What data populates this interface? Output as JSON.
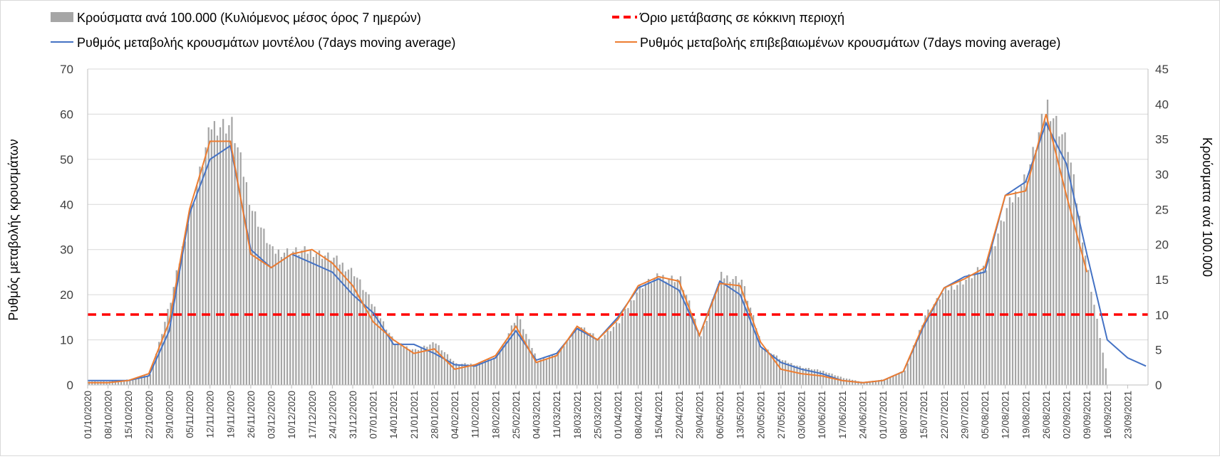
{
  "chart_data": {
    "type": "bar+line",
    "legend": {
      "bars": "Κρούσματα ανά 100.000 (Κυλιόμενος μέσος όρος 7 ημερών)",
      "threshold": "Όριο μετάβασης σε κόκκινη περιοχή",
      "model": "Ρυθμός μεταβολής κρουσμάτων μοντέλου (7days moving average)",
      "confirmed": "Ρυθμός μεταβολής επιβεβαιωμένων κρουσμάτων (7days moving average)"
    },
    "y_left": {
      "label": "Ρυθμός μεταβολής κρουσμάτων",
      "min": 0,
      "max": 70,
      "ticks": [
        "0",
        "10",
        "20",
        "30",
        "40",
        "50",
        "60",
        "70"
      ]
    },
    "y_right": {
      "label": "Κρούσματα ανά 100.000",
      "min": 0,
      "max": 45,
      "ticks": [
        "0",
        "5",
        "10",
        "15",
        "20",
        "25",
        "30",
        "35",
        "40",
        "45"
      ]
    },
    "x_dates": [
      "01/10/2020",
      "08/10/2020",
      "15/10/2020",
      "22/10/2020",
      "29/10/2020",
      "05/11/2020",
      "12/11/2020",
      "19/11/2020",
      "26/11/2020",
      "03/12/2020",
      "10/12/2020",
      "17/12/2020",
      "24/12/2020",
      "31/12/2020",
      "07/01/2021",
      "14/01/2021",
      "21/01/2021",
      "28/01/2021",
      "04/02/2021",
      "11/02/2021",
      "18/02/2021",
      "25/02/2021",
      "04/03/2021",
      "11/03/2021",
      "18/03/2021",
      "25/03/2021",
      "01/04/2021",
      "08/04/2021",
      "15/04/2021",
      "22/04/2021",
      "29/04/2021",
      "06/05/2021",
      "13/05/2021",
      "20/05/2021",
      "27/05/2021",
      "03/06/2021",
      "10/06/2021",
      "17/06/2021",
      "24/06/2021",
      "01/07/2021",
      "08/07/2021",
      "15/07/2021",
      "22/07/2021",
      "29/07/2021",
      "05/08/2021",
      "12/08/2021",
      "19/08/2021",
      "26/08/2021",
      "02/09/2021",
      "09/09/2021",
      "16/09/2021",
      "23/09/2021"
    ],
    "threshold_value_left": 15.6,
    "bars_per_100k_weekly": [
      0.5,
      0.5,
      0.8,
      1.5,
      12,
      25,
      37,
      37,
      25,
      19,
      19,
      19,
      18,
      16,
      11,
      6,
      5,
      6,
      3,
      3,
      4,
      10,
      3.5,
      4.5,
      8.5,
      6.5,
      9,
      14,
      15.5,
      15,
      7,
      15.5,
      15,
      5.5,
      3.5,
      2.5,
      2,
      1,
      0.4,
      0.8,
      2,
      10,
      13.5,
      15,
      17,
      25,
      30,
      40,
      34,
      16,
      0,
      0
    ],
    "model_weekly_left": [
      1,
      1,
      1,
      2,
      12,
      38,
      50,
      53,
      30,
      26,
      29,
      27,
      25,
      20,
      16,
      9,
      9,
      7,
      4.5,
      4.2,
      6,
      12,
      5.5,
      7,
      12.5,
      10,
      15,
      21.5,
      23.5,
      21,
      11,
      23,
      20,
      8.5,
      5,
      3.5,
      2.5,
      1,
      0.5,
      1,
      3,
      13,
      21.5,
      24,
      25,
      42,
      45,
      58,
      49,
      29,
      10,
      6
    ],
    "confirmed_weekly_left": [
      0.5,
      0.5,
      1,
      2.5,
      14,
      39,
      54,
      54,
      29,
      26,
      29,
      30,
      27,
      22,
      14,
      10,
      7,
      8,
      3.5,
      4.5,
      6.5,
      13,
      5,
      6.5,
      13,
      10,
      14.5,
      22,
      24,
      23,
      11,
      22.5,
      22,
      9.5,
      3.5,
      2.5,
      2,
      1,
      0.5,
      1,
      3,
      13.5,
      21.5,
      23.5,
      26,
      42,
      43,
      60,
      42,
      25,
      null,
      null
    ],
    "model_tail_left": [
      4.2
    ]
  },
  "colors": {
    "bars": "#a6a6a6",
    "threshold": "#ff0000",
    "model": "#4472c4",
    "confirmed": "#ed7d31",
    "grid": "#d9d9d9"
  }
}
